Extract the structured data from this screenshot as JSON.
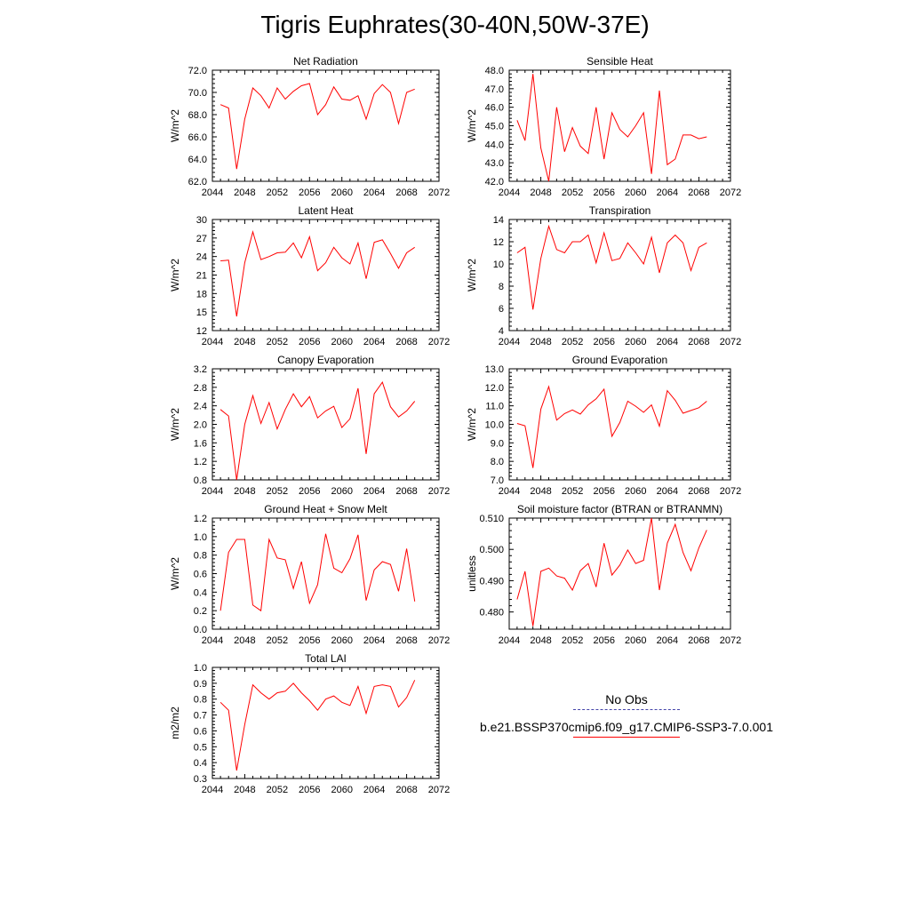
{
  "figure": {
    "title": "Tigris Euphrates(30-40N,50W-37E)"
  },
  "legend": {
    "items": [
      {
        "label": "No Obs",
        "color": "#4444aa",
        "style": "dashed"
      },
      {
        "label": "b.e21.BSSP370cmip6.f09_g17.CMIP6-SSP3-7.0.001",
        "color": "#ff0000",
        "style": "solid"
      }
    ]
  },
  "chart_data": [
    {
      "type": "line",
      "title": "Net Radiation",
      "ylabel": "W/m^2",
      "xlim": [
        2044,
        2072
      ],
      "ylim": [
        62.0,
        72.0
      ],
      "xticks": [
        2044,
        2048,
        2052,
        2056,
        2060,
        2064,
        2068,
        2072
      ],
      "yticks": [
        "62.0",
        "64.0",
        "66.0",
        "68.0",
        "70.0",
        "72.0"
      ],
      "line_color": "#ff0000",
      "x": [
        2045,
        2046,
        2047,
        2048,
        2049,
        2050,
        2051,
        2052,
        2053,
        2054,
        2055,
        2056,
        2057,
        2058,
        2059,
        2060,
        2061,
        2062,
        2063,
        2064,
        2065,
        2066,
        2067,
        2068,
        2069
      ],
      "y": [
        68.9,
        68.6,
        63.1,
        67.6,
        70.4,
        69.7,
        68.6,
        70.4,
        69.4,
        70.1,
        70.6,
        70.8,
        68.0,
        68.9,
        70.5,
        69.4,
        69.3,
        69.7,
        67.6,
        69.9,
        70.7,
        70.0,
        67.2,
        70.0,
        70.3
      ]
    },
    {
      "type": "line",
      "title": "Sensible Heat",
      "ylabel": "W/m^2",
      "xlim": [
        2044,
        2072
      ],
      "ylim": [
        42.0,
        48.0
      ],
      "xticks": [
        2044,
        2048,
        2052,
        2056,
        2060,
        2064,
        2068,
        2072
      ],
      "yticks": [
        "42.0",
        "43.0",
        "44.0",
        "45.0",
        "46.0",
        "47.0",
        "48.0"
      ],
      "line_color": "#ff0000",
      "x": [
        2045,
        2046,
        2047,
        2048,
        2049,
        2050,
        2051,
        2052,
        2053,
        2054,
        2055,
        2056,
        2057,
        2058,
        2059,
        2060,
        2061,
        2062,
        2063,
        2064,
        2065,
        2066,
        2067,
        2068,
        2069
      ],
      "y": [
        45.3,
        44.2,
        47.8,
        43.8,
        42.0,
        46.0,
        43.6,
        44.9,
        43.9,
        43.5,
        46.0,
        43.2,
        45.7,
        44.8,
        44.4,
        45.0,
        45.7,
        42.4,
        46.9,
        42.9,
        43.2,
        44.5,
        44.5,
        44.3,
        44.4
      ]
    },
    {
      "type": "line",
      "title": "Latent Heat",
      "ylabel": "W/m^2",
      "xlim": [
        2044,
        2072
      ],
      "ylim": [
        12,
        30
      ],
      "xticks": [
        2044,
        2048,
        2052,
        2056,
        2060,
        2064,
        2068,
        2072
      ],
      "yticks": [
        "12",
        "15",
        "18",
        "21",
        "24",
        "27",
        "30"
      ],
      "line_color": "#ff0000",
      "x": [
        2045,
        2046,
        2047,
        2048,
        2049,
        2050,
        2051,
        2052,
        2053,
        2054,
        2055,
        2056,
        2057,
        2058,
        2059,
        2060,
        2061,
        2062,
        2063,
        2064,
        2065,
        2066,
        2067,
        2068,
        2069
      ],
      "y": [
        23.3,
        23.4,
        14.3,
        23.0,
        28.0,
        23.5,
        24.0,
        24.6,
        24.7,
        26.2,
        23.8,
        27.2,
        21.7,
        23.0,
        25.5,
        23.8,
        22.8,
        26.2,
        20.4,
        26.3,
        26.7,
        24.5,
        22.1,
        24.6,
        25.5
      ]
    },
    {
      "type": "line",
      "title": "Transpiration",
      "ylabel": "W/m^2",
      "xlim": [
        2044,
        2072
      ],
      "ylim": [
        4,
        14
      ],
      "xticks": [
        2044,
        2048,
        2052,
        2056,
        2060,
        2064,
        2068,
        2072
      ],
      "yticks": [
        "4",
        "6",
        "8",
        "10",
        "12",
        "14"
      ],
      "line_color": "#ff0000",
      "x": [
        2045,
        2046,
        2047,
        2048,
        2049,
        2050,
        2051,
        2052,
        2053,
        2054,
        2055,
        2056,
        2057,
        2058,
        2059,
        2060,
        2061,
        2062,
        2063,
        2064,
        2065,
        2066,
        2067,
        2068,
        2069
      ],
      "y": [
        11.0,
        11.5,
        5.9,
        10.5,
        13.4,
        11.3,
        11.0,
        12.0,
        12.0,
        12.6,
        10.1,
        12.8,
        10.3,
        10.5,
        11.9,
        11.0,
        10.0,
        12.4,
        9.2,
        11.9,
        12.6,
        11.9,
        9.4,
        11.5,
        11.9
      ]
    },
    {
      "type": "line",
      "title": "Canopy Evaporation",
      "ylabel": "W/m^2",
      "xlim": [
        2044,
        2072
      ],
      "ylim": [
        0.8,
        3.2
      ],
      "xticks": [
        2044,
        2048,
        2052,
        2056,
        2060,
        2064,
        2068,
        2072
      ],
      "yticks": [
        "0.8",
        "1.2",
        "1.6",
        "2.0",
        "2.4",
        "2.8",
        "3.2"
      ],
      "line_color": "#ff0000",
      "x": [
        2045,
        2046,
        2047,
        2048,
        2049,
        2050,
        2051,
        2052,
        2053,
        2054,
        2055,
        2056,
        2057,
        2058,
        2059,
        2060,
        2061,
        2062,
        2063,
        2064,
        2065,
        2066,
        2067,
        2068,
        2069
      ],
      "y": [
        2.32,
        2.18,
        0.8,
        2.0,
        2.62,
        2.02,
        2.47,
        1.9,
        2.32,
        2.66,
        2.38,
        2.6,
        2.14,
        2.29,
        2.39,
        1.93,
        2.12,
        2.78,
        1.36,
        2.66,
        2.91,
        2.38,
        2.16,
        2.29,
        2.5
      ]
    },
    {
      "type": "line",
      "title": "Ground Evaporation",
      "ylabel": "W/m^2",
      "xlim": [
        2044,
        2072
      ],
      "ylim": [
        7.0,
        13.0
      ],
      "xticks": [
        2044,
        2048,
        2052,
        2056,
        2060,
        2064,
        2068,
        2072
      ],
      "yticks": [
        "7.0",
        "8.0",
        "9.0",
        "10.0",
        "11.0",
        "12.0",
        "13.0"
      ],
      "line_color": "#ff0000",
      "x": [
        2045,
        2046,
        2047,
        2048,
        2049,
        2050,
        2051,
        2052,
        2053,
        2054,
        2055,
        2056,
        2057,
        2058,
        2059,
        2060,
        2061,
        2062,
        2063,
        2064,
        2065,
        2066,
        2067,
        2068,
        2069
      ],
      "y": [
        10.05,
        9.92,
        7.65,
        10.82,
        12.04,
        10.23,
        10.58,
        10.78,
        10.55,
        11.05,
        11.38,
        11.9,
        9.35,
        10.1,
        11.25,
        10.98,
        10.65,
        11.05,
        9.9,
        11.82,
        11.3,
        10.6,
        10.75,
        10.9,
        11.25
      ]
    },
    {
      "type": "line",
      "title": "Ground Heat + Snow Melt",
      "ylabel": "W/m^2",
      "xlim": [
        2044,
        2072
      ],
      "ylim": [
        0.0,
        1.2
      ],
      "xticks": [
        2044,
        2048,
        2052,
        2056,
        2060,
        2064,
        2068,
        2072
      ],
      "yticks": [
        "0.0",
        "0.2",
        "0.4",
        "0.6",
        "0.8",
        "1.0",
        "1.2"
      ],
      "line_color": "#ff0000",
      "x": [
        2045,
        2046,
        2047,
        2048,
        2049,
        2050,
        2051,
        2052,
        2053,
        2054,
        2055,
        2056,
        2057,
        2058,
        2059,
        2060,
        2061,
        2062,
        2063,
        2064,
        2065,
        2066,
        2067,
        2068,
        2069
      ],
      "y": [
        0.2,
        0.83,
        0.97,
        0.97,
        0.26,
        0.2,
        0.97,
        0.77,
        0.75,
        0.44,
        0.73,
        0.28,
        0.48,
        1.03,
        0.66,
        0.61,
        0.76,
        1.02,
        0.31,
        0.64,
        0.73,
        0.7,
        0.41,
        0.87,
        0.3
      ]
    },
    {
      "type": "line",
      "title": "Soil moisture factor (BTRAN or BTRANMN)",
      "ylabel": "unitless",
      "xlim": [
        2044,
        2072
      ],
      "ylim": [
        0.4745,
        0.51
      ],
      "xticks": [
        2044,
        2048,
        2052,
        2056,
        2060,
        2064,
        2068,
        2072
      ],
      "yticks": [
        "0.480",
        "0.490",
        "0.500",
        "0.510"
      ],
      "line_color": "#ff0000",
      "x": [
        2045,
        2046,
        2047,
        2048,
        2049,
        2050,
        2051,
        2052,
        2053,
        2054,
        2055,
        2056,
        2057,
        2058,
        2059,
        2060,
        2061,
        2062,
        2063,
        2064,
        2065,
        2066,
        2067,
        2068,
        2069
      ],
      "y": [
        0.484,
        0.493,
        0.4755,
        0.493,
        0.494,
        0.4915,
        0.4908,
        0.487,
        0.4932,
        0.4955,
        0.488,
        0.502,
        0.4918,
        0.495,
        0.4998,
        0.4955,
        0.4965,
        0.51,
        0.487,
        0.502,
        0.508,
        0.499,
        0.4932,
        0.5005,
        0.5062
      ]
    },
    {
      "type": "line",
      "title": "Total LAI",
      "ylabel": "m2/m2",
      "xlim": [
        2044,
        2072
      ],
      "ylim": [
        0.3,
        1.0
      ],
      "xticks": [
        2044,
        2048,
        2052,
        2056,
        2060,
        2064,
        2068,
        2072
      ],
      "yticks": [
        "0.3",
        "0.4",
        "0.5",
        "0.6",
        "0.7",
        "0.8",
        "0.9",
        "1.0"
      ],
      "line_color": "#ff0000",
      "x": [
        2045,
        2046,
        2047,
        2048,
        2049,
        2050,
        2051,
        2052,
        2053,
        2054,
        2055,
        2056,
        2057,
        2058,
        2059,
        2060,
        2061,
        2062,
        2063,
        2064,
        2065,
        2066,
        2067,
        2068,
        2069
      ],
      "y": [
        0.78,
        0.73,
        0.35,
        0.64,
        0.89,
        0.84,
        0.8,
        0.84,
        0.85,
        0.9,
        0.84,
        0.79,
        0.73,
        0.8,
        0.82,
        0.78,
        0.76,
        0.88,
        0.71,
        0.88,
        0.89,
        0.88,
        0.75,
        0.81,
        0.92
      ]
    }
  ]
}
